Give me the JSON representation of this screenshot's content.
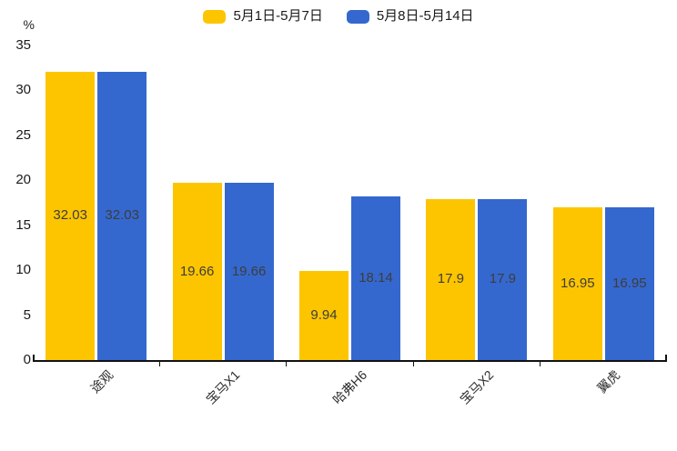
{
  "chart_data": {
    "type": "bar",
    "title": "",
    "ylabel": "%",
    "categories": [
      "途观",
      "宝马X1",
      "哈弗H6",
      "宝马X2",
      "翼虎"
    ],
    "series": [
      {
        "name": "5月1日-5月7日",
        "color": "#FDC500",
        "values": [
          32.03,
          19.66,
          9.94,
          17.9,
          16.95
        ]
      },
      {
        "name": "5月8日-5月14日",
        "color": "#3568CE",
        "values": [
          32.03,
          19.66,
          18.14,
          17.9,
          16.95
        ]
      }
    ],
    "value_labels": [
      "32.03",
      "19.66",
      "9.94",
      "17.9",
      "16.95",
      "32.03",
      "19.66",
      "18.14",
      "17.9",
      "16.95"
    ],
    "ylim": [
      0,
      35
    ],
    "yticks": [
      0,
      5,
      10,
      15,
      20,
      25,
      30,
      35
    ],
    "legend_position": "top",
    "grid": false,
    "background": "#ffffff"
  }
}
